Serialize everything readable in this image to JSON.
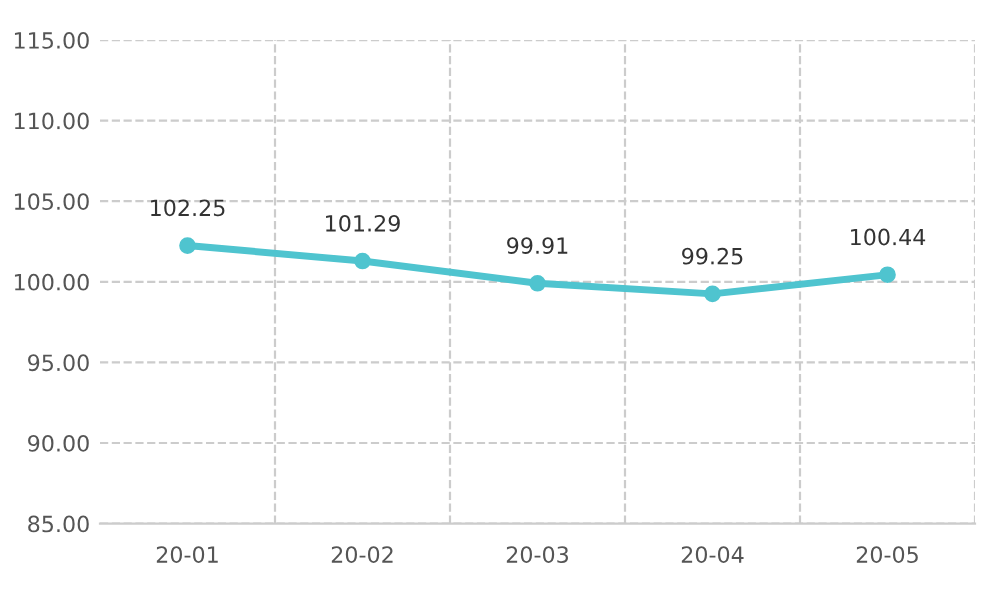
{
  "chart_data": {
    "type": "line",
    "categories": [
      "20-01",
      "20-02",
      "20-03",
      "20-04",
      "20-05"
    ],
    "series": [
      {
        "color": "#4fc4cf",
        "values": [
          102.25,
          101.29,
          99.91,
          99.25,
          100.44
        ]
      }
    ],
    "data_labels": true,
    "marker": "circle",
    "line_style": "solid",
    "grid": true,
    "ylim": [
      85,
      115
    ],
    "yticks": [
      {
        "value": 85,
        "label": "85.00"
      },
      {
        "value": 90,
        "label": "90.00"
      },
      {
        "value": 95,
        "label": "95.00"
      },
      {
        "value": 100,
        "label": "100.00"
      },
      {
        "value": 105,
        "label": "105.00"
      },
      {
        "value": 110,
        "label": "110.00"
      },
      {
        "value": 115,
        "label": "115.00"
      }
    ]
  }
}
